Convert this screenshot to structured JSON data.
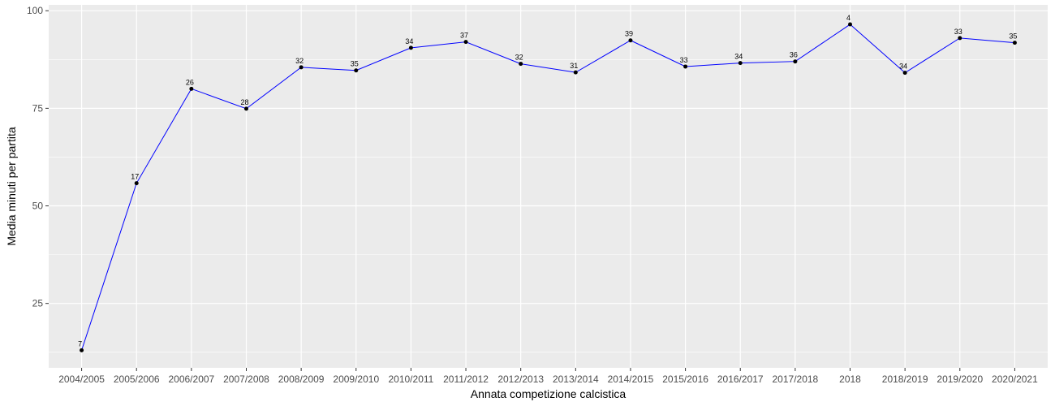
{
  "chart_data": {
    "type": "line",
    "xlabel": "Annata competizione calcistica",
    "ylabel": "Media minuti per partita",
    "categories": [
      "2004/2005",
      "2005/2006",
      "2006/2007",
      "2007/2008",
      "2008/2009",
      "2009/2010",
      "2010/2011",
      "2011/2012",
      "2012/2013",
      "2013/2014",
      "2014/2015",
      "2015/2016",
      "2016/2017",
      "2017/2018",
      "2018",
      "2018/2019",
      "2019/2020",
      "2020/2021"
    ],
    "series": [
      {
        "values": [
          13,
          55.8,
          80,
          74.9,
          85.5,
          84.7,
          90.5,
          92,
          86.4,
          84.2,
          92.4,
          85.7,
          86.6,
          87,
          96.5,
          84.1,
          93,
          91.8
        ],
        "labels": [
          "7",
          "17",
          "26",
          "28",
          "32",
          "35",
          "34",
          "37",
          "32",
          "31",
          "39",
          "33",
          "34",
          "36",
          "4",
          "34",
          "33",
          "35"
        ],
        "color": "#0000ff"
      }
    ],
    "ylim": [
      8.5,
      101.5
    ],
    "yticks": [
      25,
      50,
      75,
      100
    ],
    "grid": true,
    "panel_background": "#ebebeb",
    "grid_color": "#ffffff",
    "point_color": "#000000"
  }
}
